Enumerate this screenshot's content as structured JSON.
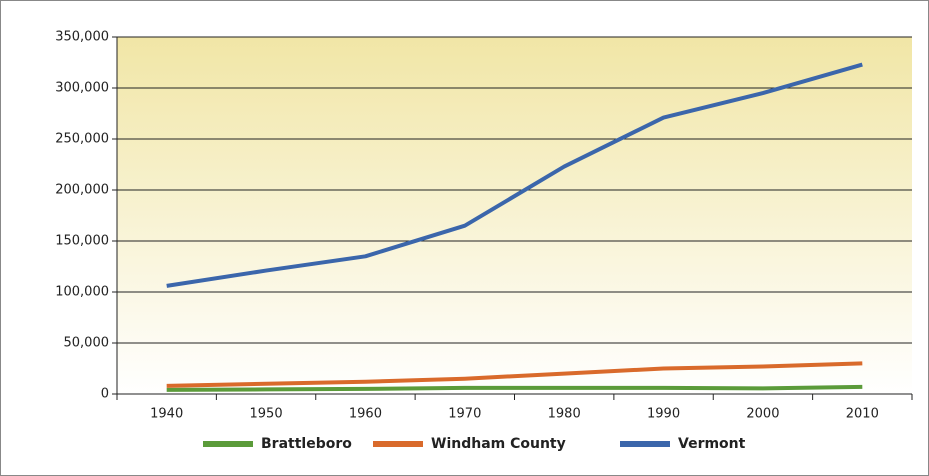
{
  "chart_data": {
    "type": "line",
    "categories": [
      "1940",
      "1950",
      "1960",
      "1970",
      "1980",
      "1990",
      "2000",
      "2010"
    ],
    "series": [
      {
        "name": "Brattleboro",
        "color": "#5b9b3a",
        "values": [
          4000,
          4500,
          5000,
          6000,
          6000,
          6000,
          5500,
          7000
        ]
      },
      {
        "name": "Windham County",
        "color": "#d96a2b",
        "values": [
          8000,
          10000,
          12000,
          15000,
          20000,
          25000,
          27000,
          30000
        ]
      },
      {
        "name": "Vermont",
        "color": "#3b66ab",
        "values": [
          106000,
          121000,
          135000,
          165000,
          223000,
          271000,
          295000,
          323000
        ]
      }
    ],
    "ylim": [
      0,
      350000
    ],
    "yticks": [
      0,
      {
        "value": 50000,
        "label": "50,000"
      },
      {
        "value": 100000,
        "label": "100,000"
      },
      {
        "value": 150000,
        "label": "150,000"
      },
      {
        "value": 200000,
        "label": "200,000"
      },
      {
        "value": 250000,
        "label": "250,000"
      },
      {
        "value": 300000,
        "label": "300,000"
      },
      {
        "value": 350000,
        "label": "350,000"
      }
    ],
    "grid": true,
    "legend": "bottom"
  }
}
